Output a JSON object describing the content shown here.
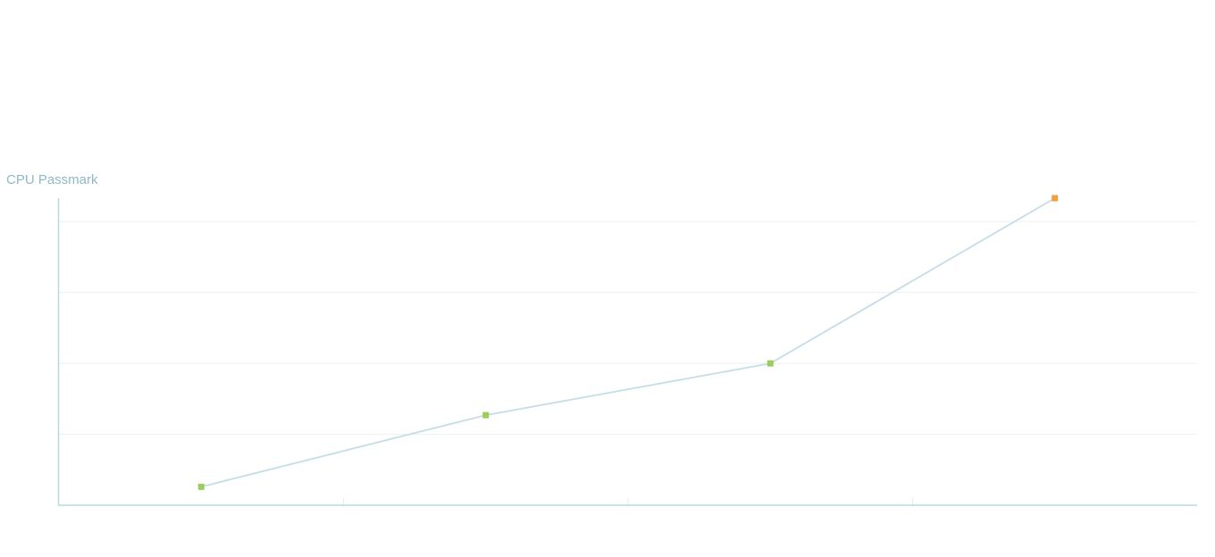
{
  "chart_data": {
    "type": "line",
    "title": "CPU Passmark",
    "categories": [
      null,
      null,
      null,
      null
    ],
    "values": [
      0.26,
      1.27,
      2.0,
      4.33
    ],
    "line_color": "#c4dde6",
    "point_colors": [
      "#9ccc5c",
      "#9ccc5c",
      "#9ccc5c",
      "#f0a03c"
    ],
    "ylim": [
      0,
      4.33
    ],
    "yticks": [
      0,
      1,
      2,
      3,
      4
    ],
    "grid": true
  }
}
